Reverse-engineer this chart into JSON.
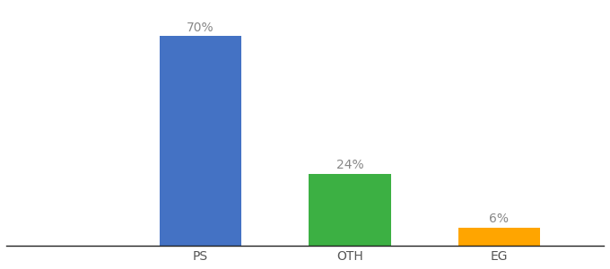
{
  "categories": [
    "PS",
    "OTH",
    "EG"
  ],
  "values": [
    70,
    24,
    6
  ],
  "bar_colors": [
    "#4472C4",
    "#3CB043",
    "#FFA500"
  ],
  "labels": [
    "70%",
    "24%",
    "6%"
  ],
  "ylim": [
    0,
    80
  ],
  "xlim": [
    -0.8,
    3.2
  ],
  "x_positions": [
    0.5,
    1.5,
    2.5
  ],
  "background_color": "#ffffff",
  "label_fontsize": 10,
  "tick_fontsize": 10,
  "bar_width": 0.55
}
